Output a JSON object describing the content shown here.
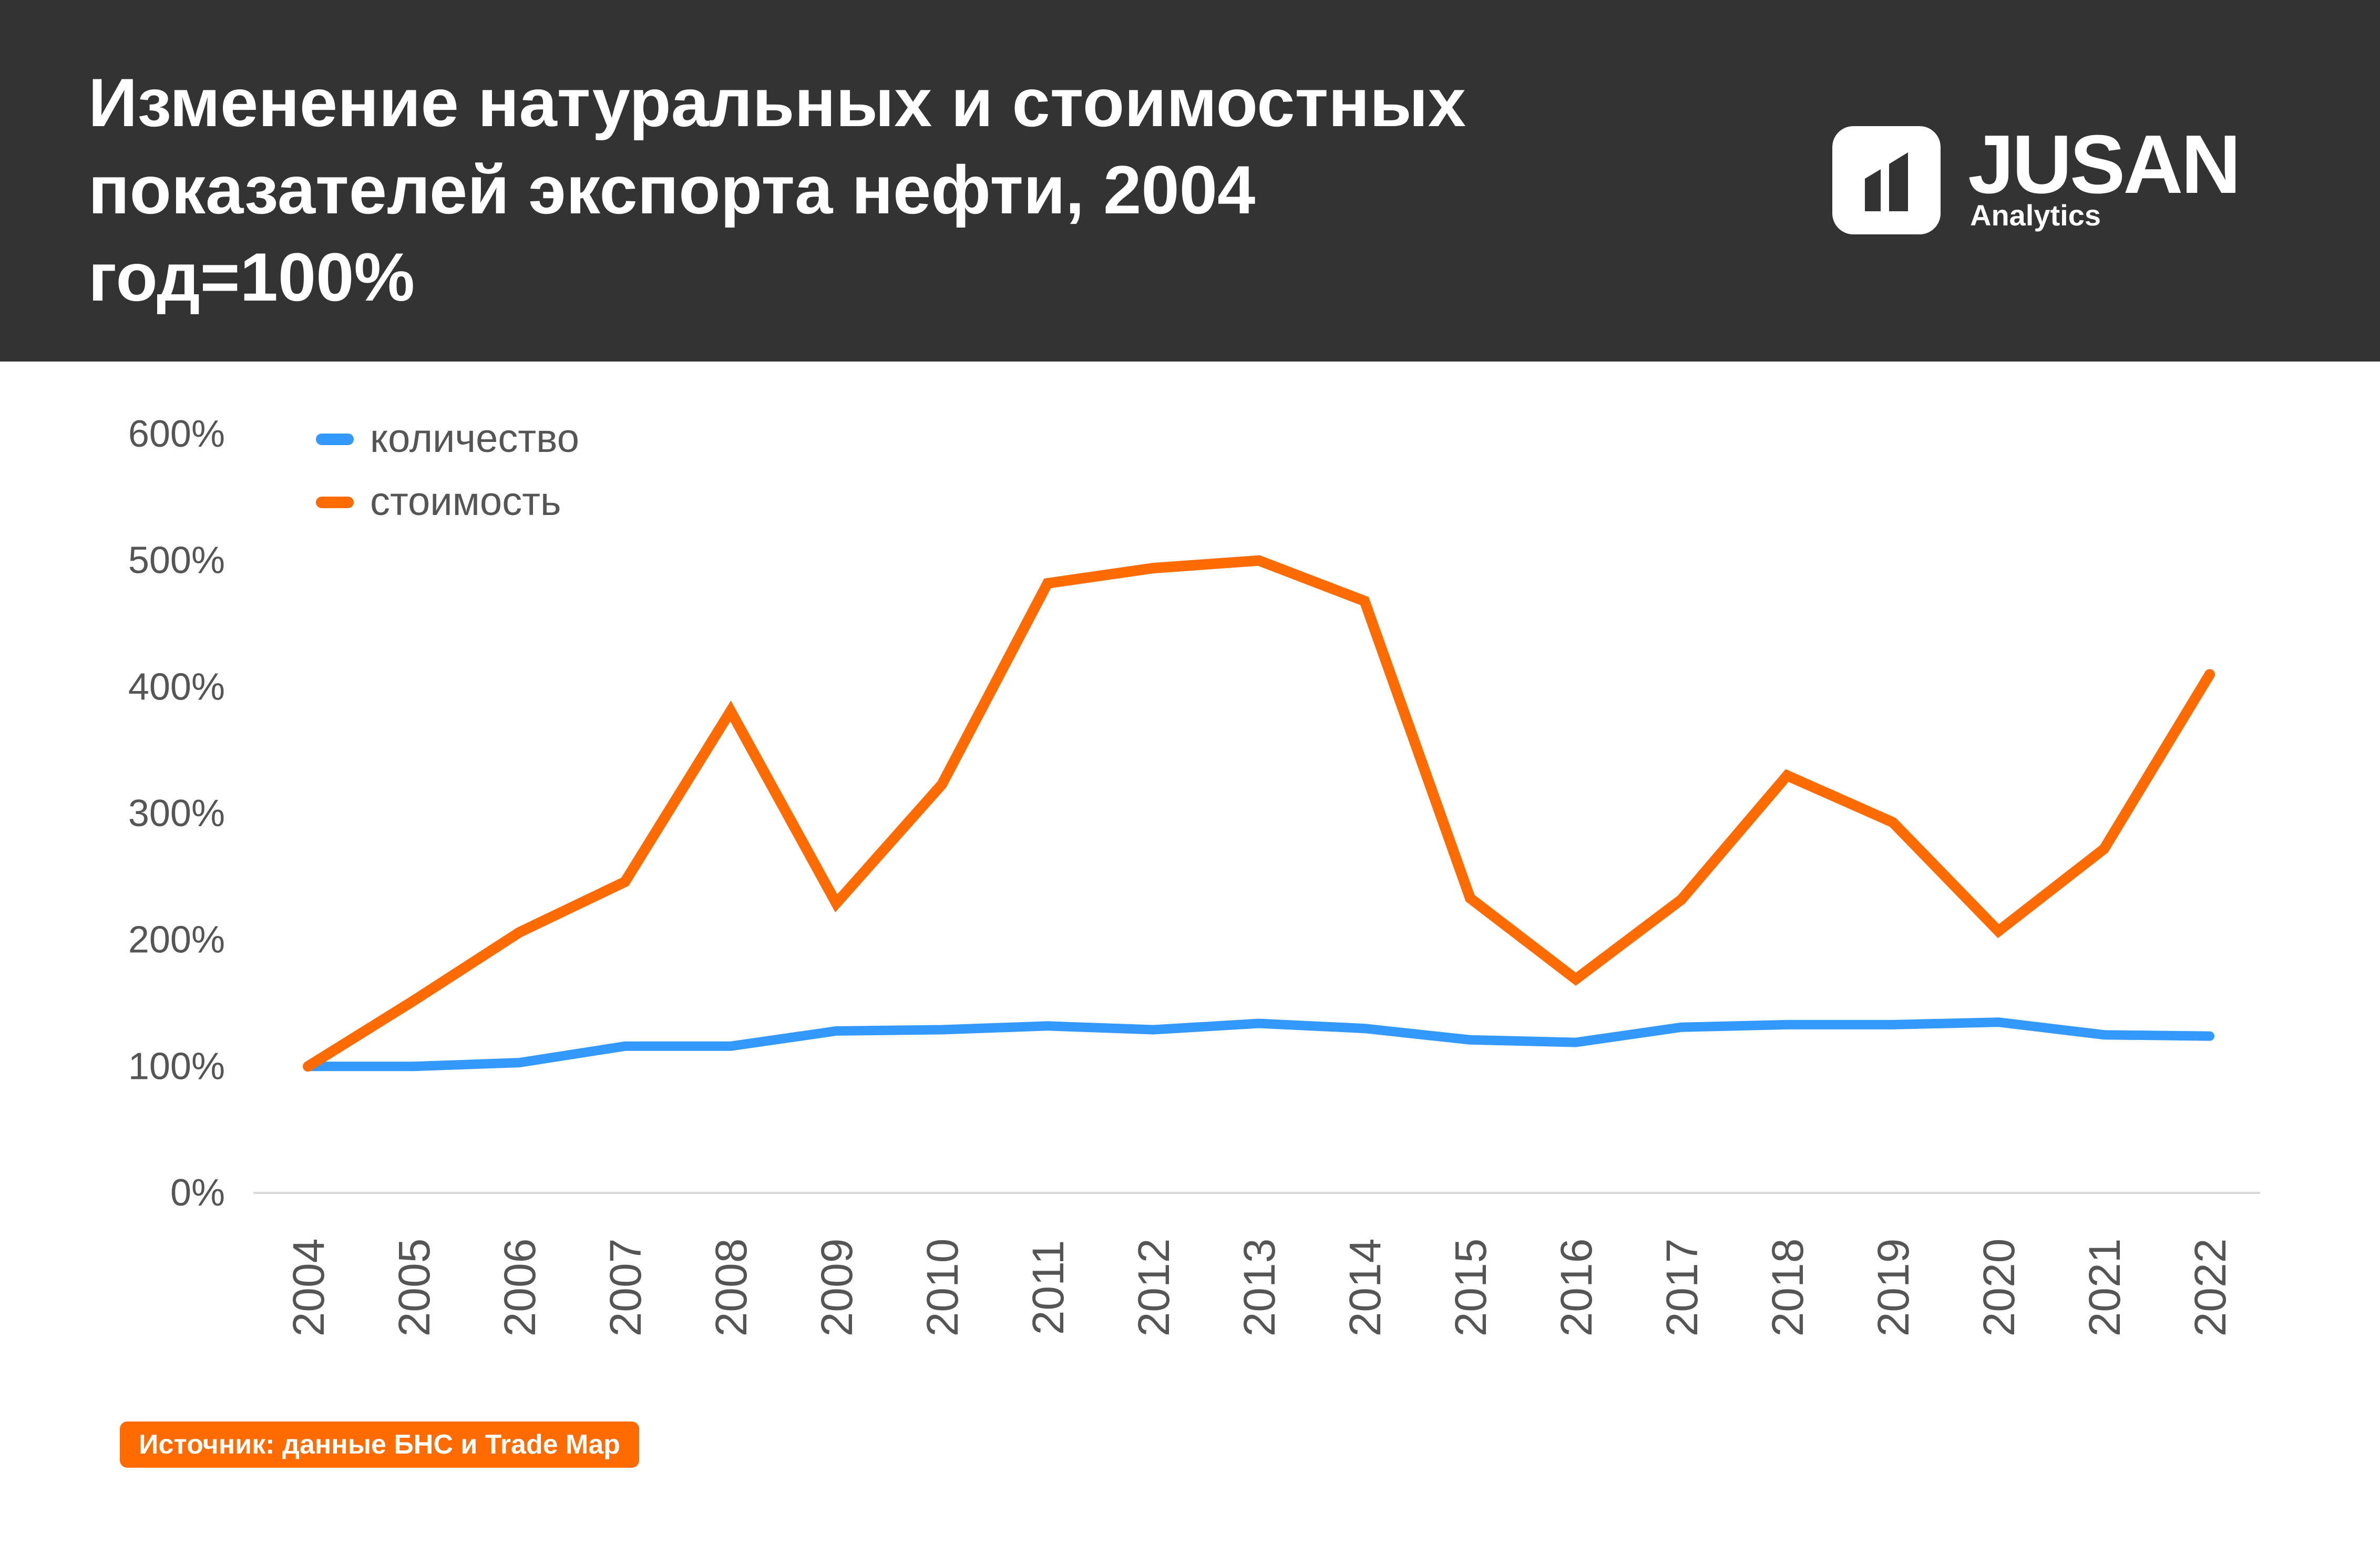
{
  "header": {
    "title": "Изменение натуральных и стоимостных\nпоказателей экспорта нефти, 2004\nгод=100%",
    "logo_name": "JUSAN",
    "logo_sub": "Analytics",
    "background_color": "#333333"
  },
  "source": "Источник: данные БНС и Trade Map",
  "colors": {
    "quantity": "#3399ff",
    "value": "#ff6b00",
    "axis_text": "#555555",
    "badge": "#ff6b00"
  },
  "chart_data": {
    "type": "line",
    "title": "Изменение натуральных и стоимостных показателей экспорта нефти, 2004 год=100%",
    "x": [
      "2004",
      "2005",
      "2006",
      "2007",
      "2008",
      "2009",
      "2010",
      "2011",
      "2012",
      "2013",
      "2014",
      "2015",
      "2016",
      "2017",
      "2018",
      "2019",
      "2020",
      "2021",
      "2022"
    ],
    "series": [
      {
        "name": "количество",
        "color": "#3399ff",
        "values": [
          100,
          100,
          103,
          116,
          116,
          128,
          129,
          132,
          129,
          134,
          130,
          121,
          119,
          131,
          133,
          133,
          135,
          125,
          124
        ]
      },
      {
        "name": "стоимость",
        "color": "#ff6b00",
        "values": [
          100,
          152,
          206,
          246,
          381,
          229,
          323,
          482,
          494,
          500,
          468,
          233,
          169,
          232,
          330,
          293,
          207,
          272,
          410
        ]
      }
    ],
    "yticks": [
      "0%",
      "100%",
      "200%",
      "300%",
      "400%",
      "500%",
      "600%"
    ],
    "ylim": [
      0,
      600
    ],
    "xlabel": "",
    "ylabel": "",
    "legend_position": "top-left",
    "grid": false
  }
}
